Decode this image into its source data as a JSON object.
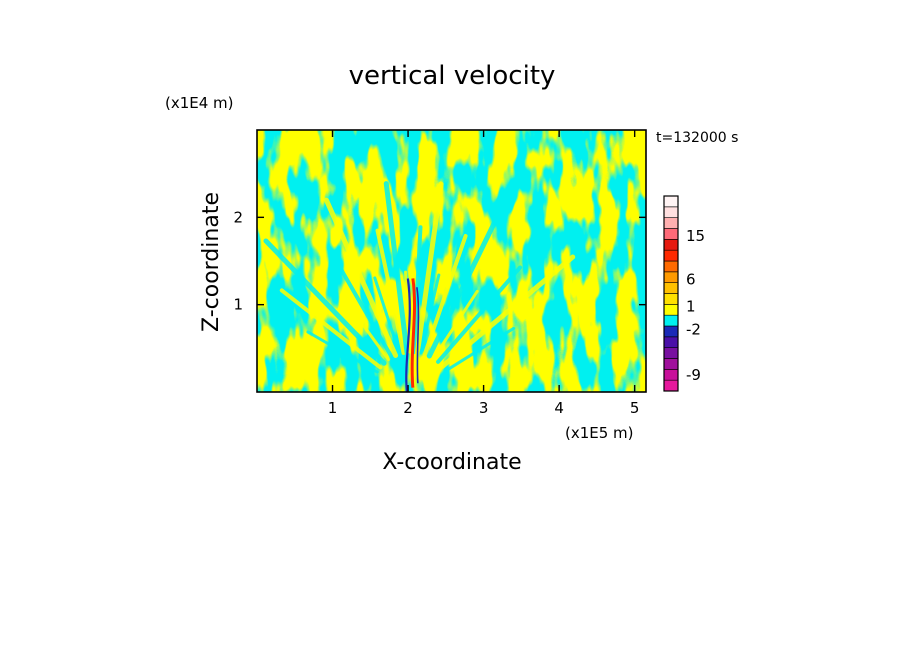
{
  "chart_data": {
    "type": "heatmap",
    "title": "vertical velocity",
    "xlabel": "X-coordinate",
    "ylabel": "Z-coordinate",
    "x_unit": "(x1E5 m)",
    "y_unit": "(x1E4 m)",
    "time_label": "t=132000 s",
    "xlim": [
      0.0,
      5.15
    ],
    "ylim": [
      0.0,
      3.0
    ],
    "x_ticks": [
      {
        "value": 1,
        "label": "1"
      },
      {
        "value": 2,
        "label": "2"
      },
      {
        "value": 3,
        "label": "3"
      },
      {
        "value": 4,
        "label": "4"
      },
      {
        "value": 5,
        "label": "5"
      }
    ],
    "y_ticks": [
      {
        "value": 1,
        "label": "1"
      },
      {
        "value": 2,
        "label": "2"
      }
    ],
    "colorbar": {
      "levels": [
        {
          "color": "#e6189c"
        },
        {
          "color": "#c8109a"
        },
        {
          "color": "#a0109c"
        },
        {
          "color": "#7810a0"
        },
        {
          "color": "#4a10a8"
        },
        {
          "color": "#1a2ab8"
        },
        {
          "color": "#00f0f0"
        },
        {
          "color": "#ffff00"
        },
        {
          "color": "#ffe000"
        },
        {
          "color": "#ffc000"
        },
        {
          "color": "#ff9a00"
        },
        {
          "color": "#ff6a00"
        },
        {
          "color": "#ff2a00"
        },
        {
          "color": "#e61a10"
        },
        {
          "color": "#ff6a78"
        },
        {
          "color": "#ffb0b0"
        },
        {
          "color": "#ffe0e0"
        },
        {
          "color": "#fff4f4"
        }
      ],
      "labels": [
        {
          "text": "-9",
          "level": 1.5
        },
        {
          "text": "-2",
          "level": 5.7
        },
        {
          "text": "1",
          "level": 7.8
        },
        {
          "text": "6",
          "level": 10.3
        },
        {
          "text": "15",
          "level": 14.3
        }
      ]
    },
    "field_colors": {
      "negative_small": "#00f0f0",
      "positive_small": "#ffff00",
      "updraft": "#ff2a00",
      "downdraft": "#1a2ab8"
    }
  }
}
